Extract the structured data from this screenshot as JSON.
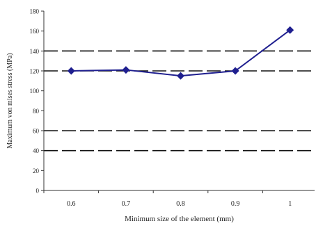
{
  "chart_data": {
    "type": "line",
    "xlabel": "Minimum size of the element (mm)",
    "ylabel": "Maximum von mises stress (MPa)",
    "x": [
      0.6,
      0.7,
      0.8,
      0.9,
      1
    ],
    "x_tick_labels": [
      "0.6",
      "0.7",
      "0.8",
      "0.9",
      "1"
    ],
    "series": [
      {
        "values": [
          120,
          121,
          115,
          120,
          161
        ]
      }
    ],
    "ylim": [
      0,
      180
    ],
    "y_ticks": [
      0,
      20,
      40,
      60,
      80,
      100,
      120,
      140,
      160,
      180
    ],
    "y_tick_labels": [
      "0",
      "20",
      "40",
      "60",
      "80",
      "100",
      "120",
      "140",
      "160",
      "180"
    ],
    "dashed_gridlines_at": [
      40,
      60,
      120,
      140
    ],
    "line_color": "#1f1f8f",
    "marker": "diamond"
  }
}
